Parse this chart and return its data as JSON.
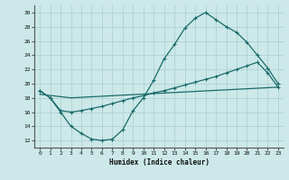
{
  "xlabel": "Humidex (Indice chaleur)",
  "bg_color": "#cce8e8",
  "line_color": "#1a6b6b",
  "grid_color": "#aacece",
  "ylim": [
    11,
    31
  ],
  "xlim": [
    -0.5,
    23.5
  ],
  "yticks": [
    12,
    14,
    16,
    18,
    20,
    22,
    24,
    26,
    28,
    30
  ],
  "xticks": [
    0,
    1,
    2,
    3,
    4,
    5,
    6,
    7,
    8,
    9,
    10,
    11,
    12,
    13,
    14,
    15,
    16,
    17,
    18,
    19,
    20,
    21,
    22,
    23
  ],
  "line1_x": [
    0,
    1,
    2,
    3,
    4,
    5,
    6,
    7,
    8,
    9,
    10,
    11,
    12,
    13,
    14,
    15,
    16,
    17,
    18,
    19,
    20,
    21,
    22,
    23
  ],
  "line1_y": [
    19.0,
    18.0,
    16.0,
    14.0,
    13.0,
    12.2,
    12.0,
    12.2,
    13.5,
    16.2,
    18.0,
    20.5,
    23.5,
    25.5,
    27.8,
    29.2,
    30.0,
    29.0,
    28.0,
    27.2,
    25.8,
    24.0,
    22.2,
    20.0
  ],
  "line2_x": [
    0,
    1,
    2,
    3,
    4,
    5,
    6,
    7,
    8,
    9,
    10,
    11,
    12,
    13,
    14,
    15,
    16,
    17,
    18,
    19,
    20,
    21,
    22,
    23
  ],
  "line2_y": [
    19.0,
    18.0,
    16.2,
    16.0,
    16.2,
    16.5,
    16.8,
    17.2,
    17.6,
    18.0,
    18.3,
    18.7,
    19.0,
    19.4,
    19.8,
    20.2,
    20.6,
    21.0,
    21.5,
    22.0,
    22.5,
    23.0,
    21.5,
    19.5
  ],
  "line3_x": [
    0,
    3,
    23
  ],
  "line3_y": [
    18.5,
    18.0,
    19.5
  ]
}
